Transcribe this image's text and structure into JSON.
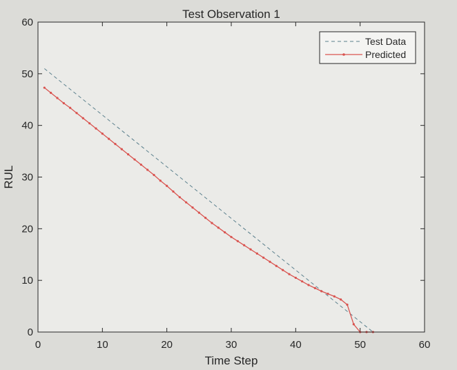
{
  "chart_data": {
    "type": "line",
    "title": "Test Observation 1",
    "xlabel": "Time Step",
    "ylabel": "RUL",
    "xlim": [
      0,
      60
    ],
    "ylim": [
      0,
      60
    ],
    "xticks": [
      0,
      10,
      20,
      30,
      40,
      50,
      60
    ],
    "yticks": [
      0,
      10,
      20,
      30,
      40,
      50,
      60
    ],
    "grid": false,
    "legend_position": "top-right",
    "series": [
      {
        "name": "Test Data",
        "style": "dashed",
        "color": "#5a7f8c",
        "x": [
          1,
          52
        ],
        "y": [
          51,
          0
        ]
      },
      {
        "name": "Predicted",
        "style": "solid-dots",
        "color": "#d9534f",
        "x": [
          1,
          2,
          3,
          4,
          5,
          6,
          7,
          8,
          9,
          10,
          11,
          12,
          13,
          14,
          15,
          16,
          17,
          18,
          19,
          20,
          21,
          22,
          23,
          24,
          25,
          26,
          27,
          28,
          29,
          30,
          31,
          32,
          33,
          34,
          35,
          36,
          37,
          38,
          39,
          40,
          41,
          42,
          43,
          44,
          45,
          46,
          47,
          48,
          49,
          50,
          51,
          52
        ],
        "y": [
          47.3,
          46.3,
          45.3,
          44.3,
          43.4,
          42.4,
          41.4,
          40.4,
          39.4,
          38.4,
          37.4,
          36.4,
          35.4,
          34.4,
          33.4,
          32.4,
          31.4,
          30.4,
          29.3,
          28.3,
          27.2,
          26.1,
          25.1,
          24.1,
          23.1,
          22.1,
          21.1,
          20.2,
          19.3,
          18.4,
          17.6,
          16.8,
          16.0,
          15.2,
          14.4,
          13.6,
          12.8,
          12.0,
          11.2,
          10.5,
          9.8,
          9.1,
          8.5,
          7.9,
          7.4,
          6.9,
          6.3,
          5.3,
          1.5,
          0,
          0,
          0
        ]
      }
    ]
  }
}
